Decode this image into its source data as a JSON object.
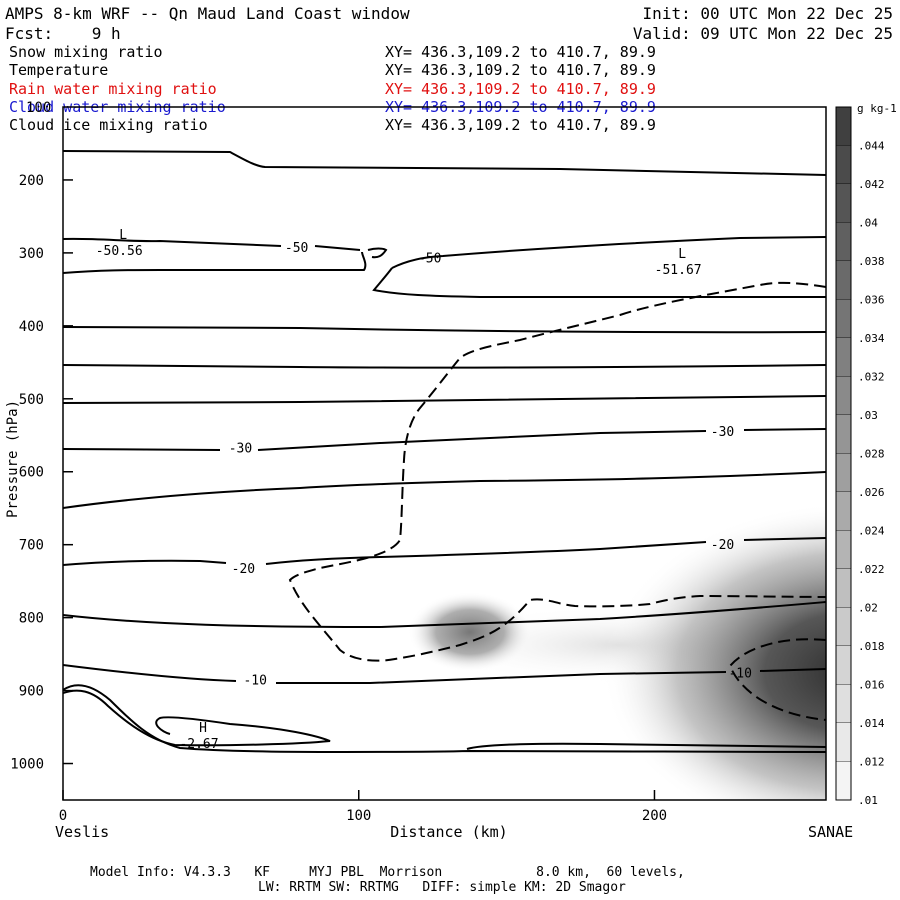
{
  "header": {
    "title": "AMPS 8-km WRF -- Qn Maud Land Coast window",
    "forecast": "Fcst:    9 h",
    "init": "Init: 00 UTC Mon 22 Dec 25",
    "valid": "Valid: 09 UTC Mon 22 Dec 25"
  },
  "fields": [
    {
      "name": "Snow mixing ratio",
      "xy": "XY= 436.3,109.2 to 410.7, 89.9",
      "color": "#000000"
    },
    {
      "name": "Temperature",
      "xy": "XY= 436.3,109.2 to 410.7, 89.9",
      "color": "#000000"
    },
    {
      "name": "Rain water mixing ratio",
      "xy": "XY= 436.3,109.2 to 410.7, 89.9",
      "color": "#e01010"
    },
    {
      "name": "Cloud water mixing ratio",
      "xy": "XY= 436.3,109.2 to 410.7, 89.9",
      "color": "#1a1ad0"
    },
    {
      "name": "Cloud ice mixing ratio",
      "xy": "XY= 436.3,109.2 to 410.7, 89.9",
      "color": "#000000"
    }
  ],
  "footer": {
    "line1": "Model Info: V4.3.3   KF     MYJ PBL  Morrison            8.0 km,  60 levels,",
    "line2": "LW: RRTM SW: RRTMG   DIFF: simple KM: 2D Smagor"
  },
  "chart_data": {
    "type": "cross-section contour",
    "title": "AMPS 8-km WRF -- Qn Maud Land Coast window",
    "xlabel": "Distance (km)",
    "ylabel": "Pressure (hPa)",
    "xlim": [
      0,
      258
    ],
    "ylim": [
      1050,
      100
    ],
    "x_ticks": [
      0,
      100,
      200
    ],
    "y_ticks": [
      200,
      300,
      400,
      500,
      600,
      700,
      800,
      900,
      1000
    ],
    "y_top_label": "100",
    "x_endpoint_labels": [
      "Veslis",
      "SANAE"
    ],
    "colorbar": {
      "units": "g kg-1",
      "ticks": [
        ".044",
        ".042",
        ".04",
        ".038",
        ".036",
        ".034",
        ".032",
        ".03",
        ".028",
        ".026",
        ".024",
        ".022",
        ".02",
        ".018",
        ".016",
        ".014",
        ".012",
        ".01"
      ]
    },
    "temperature_labels": [
      {
        "text": "-50",
        "x": 79,
        "p": 292
      },
      {
        "text": "-50",
        "x": 124,
        "p": 306
      },
      {
        "text": "-30",
        "x": 60,
        "p": 567
      },
      {
        "text": "-30",
        "x": 223,
        "p": 544
      },
      {
        "text": "-20",
        "x": 61,
        "p": 732
      },
      {
        "text": "-20",
        "x": 223,
        "p": 699
      },
      {
        "text": "-10",
        "x": 65,
        "p": 885
      },
      {
        "text": "-10",
        "x": 229,
        "p": 875
      }
    ],
    "extrema": [
      {
        "type": "L",
        "value": "-50.56",
        "x": 19,
        "p": 289
      },
      {
        "type": "L",
        "value": "-51.67",
        "x": 208,
        "p": 315
      },
      {
        "type": "H",
        "value": "-2.67",
        "x": 46,
        "p": 965
      }
    ],
    "isotherms_p_at_x": {
      "x": [
        0,
        50,
        100,
        150,
        200,
        258
      ],
      "levels": [
        {
          "p": [
            160,
            163,
            183,
            185,
            189,
            191
          ]
        },
        {
          "p": [
            400,
            401,
            405,
            407,
            407,
            405
          ]
        },
        {
          "p": [
            452,
            455,
            458,
            458,
            457,
            455
          ]
        },
        {
          "p": [
            505,
            504,
            505,
            502,
            497,
            494
          ]
        },
        {
          "p": [
            566,
            566,
            562,
            555,
            547,
            540
          ]
        },
        {
          "p": [
            650,
            632,
            624,
            613,
            610,
            601
          ]
        },
        {
          "p": [
            728,
            722,
            725,
            712,
            700,
            690
          ]
        },
        {
          "p": [
            798,
            815,
            815,
            810,
            797,
            780
          ]
        },
        {
          "p": [
            867,
            880,
            890,
            887,
            876,
            870
          ]
        }
      ]
    },
    "snow_maxima_g_per_kg": [
      {
        "x": 140,
        "p": 820,
        "value": 0.036
      },
      {
        "x": 258,
        "p": 880,
        "value": 0.046
      }
    ]
  }
}
